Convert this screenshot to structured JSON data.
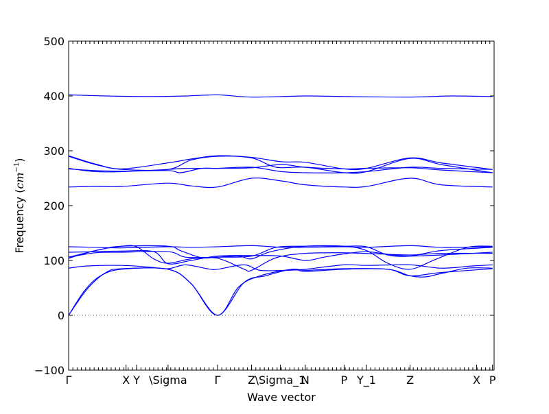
{
  "chart_data": {
    "type": "line",
    "title": "",
    "xlabel": "Wave vector",
    "ylabel_text": "Frequency (",
    "ylabel_unit": "cm",
    "ylabel_exp": "−1",
    "ylabel_close": ")",
    "ylim": [
      -100,
      500
    ],
    "xlim": [
      0,
      8
    ],
    "y_ticks": [
      -100,
      0,
      100,
      200,
      300,
      400,
      500
    ],
    "y_tick_labels": [
      "−100",
      "0",
      "100",
      "200",
      "300",
      "400",
      "500"
    ],
    "x_ticks": [
      {
        "x": 0.0,
        "label": "Γ"
      },
      {
        "x": 1.08,
        "label": "X"
      },
      {
        "x": 1.28,
        "label": "Y"
      },
      {
        "x": 1.87,
        "label": "\\Sigma"
      },
      {
        "x": 2.8,
        "label": "Γ"
      },
      {
        "x": 3.44,
        "label": "Z"
      },
      {
        "x": 3.98,
        "label": "\\Sigma_1"
      },
      {
        "x": 4.45,
        "label": "N"
      },
      {
        "x": 5.18,
        "label": "P"
      },
      {
        "x": 5.6,
        "label": "Y_1"
      },
      {
        "x": 6.42,
        "label": "Z"
      },
      {
        "x": 7.67,
        "label": "X"
      },
      {
        "x": 7.97,
        "label": "P"
      }
    ],
    "zero_line": {
      "y": 0,
      "style": "dotted"
    },
    "line_color": "#0000ff",
    "series": [
      {
        "values": [
          [
            0,
            0
          ],
          [
            0.35,
            48
          ],
          [
            0.7,
            78
          ],
          [
            1.0,
            85
          ],
          [
            1.87,
            84
          ],
          [
            2.3,
            58
          ],
          [
            2.8,
            0
          ],
          [
            3.2,
            52
          ],
          [
            3.6,
            72
          ],
          [
            4.2,
            84
          ],
          [
            4.45,
            82
          ],
          [
            5.18,
            85
          ],
          [
            6.0,
            84
          ],
          [
            6.42,
            72
          ],
          [
            6.7,
            70
          ],
          [
            7.0,
            76
          ],
          [
            7.5,
            86
          ],
          [
            7.97,
            86
          ]
        ]
      },
      {
        "values": [
          [
            0,
            0
          ],
          [
            0.3,
            45
          ],
          [
            0.6,
            72
          ],
          [
            1.0,
            84
          ],
          [
            1.87,
            84
          ],
          [
            2.3,
            58
          ],
          [
            2.8,
            0
          ],
          [
            3.3,
            60
          ],
          [
            3.7,
            72
          ],
          [
            4.2,
            84
          ],
          [
            4.45,
            80
          ],
          [
            5.18,
            84
          ],
          [
            6.0,
            84
          ],
          [
            6.42,
            72
          ],
          [
            7.0,
            78
          ],
          [
            7.97,
            85
          ]
        ]
      },
      {
        "values": [
          [
            0,
            86
          ],
          [
            0.35,
            90
          ],
          [
            1.0,
            91
          ],
          [
            1.5,
            88
          ],
          [
            1.87,
            85
          ],
          [
            2.2,
            92
          ],
          [
            2.6,
            85
          ],
          [
            2.8,
            84
          ],
          [
            3.3,
            92
          ],
          [
            3.6,
            82
          ],
          [
            4.1,
            82
          ],
          [
            4.45,
            84
          ],
          [
            5.18,
            92
          ],
          [
            5.6,
            91
          ],
          [
            6.42,
            92
          ],
          [
            7.0,
            86
          ],
          [
            7.6,
            90
          ],
          [
            7.97,
            92
          ]
        ]
      },
      {
        "values": [
          [
            0,
            104
          ],
          [
            0.5,
            118
          ],
          [
            1.0,
            126
          ],
          [
            1.28,
            125
          ],
          [
            1.6,
            103
          ],
          [
            1.87,
            95
          ],
          [
            2.3,
            103
          ],
          [
            2.8,
            106
          ],
          [
            3.2,
            108
          ],
          [
            3.44,
            103
          ],
          [
            3.8,
            116
          ],
          [
            4.45,
            126
          ],
          [
            5.18,
            126
          ],
          [
            5.6,
            118
          ],
          [
            6.0,
            95
          ],
          [
            6.42,
            84
          ],
          [
            6.9,
            102
          ],
          [
            7.5,
            124
          ],
          [
            7.97,
            126
          ]
        ]
      },
      {
        "values": [
          [
            0,
            106
          ],
          [
            0.5,
            114
          ],
          [
            1.0,
            115
          ],
          [
            1.87,
            116
          ],
          [
            2.2,
            106
          ],
          [
            2.8,
            104
          ],
          [
            3.3,
            84
          ],
          [
            3.44,
            82
          ],
          [
            3.9,
            105
          ],
          [
            4.45,
            113
          ],
          [
            5.18,
            114
          ],
          [
            5.8,
            112
          ],
          [
            6.42,
            110
          ],
          [
            7.0,
            113
          ],
          [
            7.97,
            113
          ]
        ]
      },
      {
        "values": [
          [
            0,
            115
          ],
          [
            0.5,
            116
          ],
          [
            1.0,
            117
          ],
          [
            1.6,
            116
          ],
          [
            1.87,
            94
          ],
          [
            2.3,
            100
          ],
          [
            2.8,
            108
          ],
          [
            3.44,
            109
          ],
          [
            4.0,
            108
          ],
          [
            4.45,
            100
          ],
          [
            4.8,
            106
          ],
          [
            5.18,
            112
          ],
          [
            5.6,
            116
          ],
          [
            6.1,
            110
          ],
          [
            6.42,
            108
          ],
          [
            7.0,
            110
          ],
          [
            7.97,
            115
          ]
        ]
      },
      {
        "values": [
          [
            0,
            125
          ],
          [
            0.5,
            124
          ],
          [
            1.0,
            123
          ],
          [
            1.87,
            125
          ],
          [
            2.3,
            124
          ],
          [
            2.8,
            125
          ],
          [
            3.44,
            127
          ],
          [
            4.0,
            124
          ],
          [
            4.45,
            124
          ],
          [
            5.18,
            125
          ],
          [
            5.6,
            124
          ],
          [
            6.42,
            127
          ],
          [
            7.0,
            124
          ],
          [
            7.97,
            125
          ]
        ]
      },
      {
        "values": [
          [
            0,
            106
          ],
          [
            0.6,
            120
          ],
          [
            1.0,
            126
          ],
          [
            1.87,
            126
          ],
          [
            2.1,
            118
          ],
          [
            2.5,
            105
          ],
          [
            2.8,
            106
          ],
          [
            3.44,
            108
          ],
          [
            3.9,
            124
          ],
          [
            4.45,
            126
          ],
          [
            5.18,
            126
          ],
          [
            5.6,
            125
          ],
          [
            6.0,
            110
          ],
          [
            6.42,
            108
          ],
          [
            7.0,
            118
          ],
          [
            7.97,
            124
          ]
        ]
      },
      {
        "values": [
          [
            0,
            234
          ],
          [
            0.5,
            235
          ],
          [
            1.0,
            235
          ],
          [
            1.87,
            241
          ],
          [
            2.3,
            236
          ],
          [
            2.8,
            234
          ],
          [
            3.44,
            250
          ],
          [
            4.0,
            245
          ],
          [
            4.45,
            238
          ],
          [
            5.18,
            234
          ],
          [
            5.6,
            235
          ],
          [
            6.42,
            250
          ],
          [
            7.0,
            238
          ],
          [
            7.97,
            234
          ]
        ]
      },
      {
        "values": [
          [
            0,
            268
          ],
          [
            0.5,
            262
          ],
          [
            1.0,
            262
          ],
          [
            1.87,
            266
          ],
          [
            2.2,
            268
          ],
          [
            2.8,
            268
          ],
          [
            3.44,
            269
          ],
          [
            4.0,
            275
          ],
          [
            4.45,
            270
          ],
          [
            5.18,
            267
          ],
          [
            5.6,
            268
          ],
          [
            6.42,
            269
          ],
          [
            7.0,
            265
          ],
          [
            7.97,
            260
          ]
        ]
      },
      {
        "values": [
          [
            0,
            267
          ],
          [
            0.5,
            264
          ],
          [
            1.0,
            263
          ],
          [
            1.87,
            264
          ],
          [
            2.1,
            260
          ],
          [
            2.5,
            268
          ],
          [
            2.8,
            268
          ],
          [
            3.44,
            270
          ],
          [
            4.0,
            262
          ],
          [
            4.45,
            260
          ],
          [
            5.18,
            260
          ],
          [
            5.6,
            262
          ],
          [
            6.42,
            270
          ],
          [
            7.0,
            268
          ],
          [
            7.97,
            266
          ]
        ]
      },
      {
        "values": [
          [
            0,
            291
          ],
          [
            0.5,
            276
          ],
          [
            1.0,
            267
          ],
          [
            1.87,
            278
          ],
          [
            2.3,
            285
          ],
          [
            2.8,
            291
          ],
          [
            3.44,
            288
          ],
          [
            4.0,
            280
          ],
          [
            4.45,
            279
          ],
          [
            5.18,
            267
          ],
          [
            5.6,
            268
          ],
          [
            6.42,
            287
          ],
          [
            7.0,
            278
          ],
          [
            7.97,
            266
          ]
        ]
      },
      {
        "values": [
          [
            0,
            290
          ],
          [
            0.5,
            275
          ],
          [
            1.0,
            266
          ],
          [
            1.87,
            266
          ],
          [
            2.3,
            283
          ],
          [
            2.8,
            290
          ],
          [
            3.44,
            287
          ],
          [
            3.9,
            270
          ],
          [
            4.45,
            270
          ],
          [
            5.18,
            260
          ],
          [
            5.6,
            262
          ],
          [
            6.42,
            286
          ],
          [
            7.0,
            275
          ],
          [
            7.97,
            260
          ]
        ]
      },
      {
        "values": [
          [
            0,
            402
          ],
          [
            0.7,
            400
          ],
          [
            1.5,
            399
          ],
          [
            2.2,
            400
          ],
          [
            2.8,
            402
          ],
          [
            3.44,
            398
          ],
          [
            4.45,
            400
          ],
          [
            5.18,
            399
          ],
          [
            6.42,
            398
          ],
          [
            7.2,
            400
          ],
          [
            7.97,
            399
          ]
        ]
      }
    ]
  }
}
